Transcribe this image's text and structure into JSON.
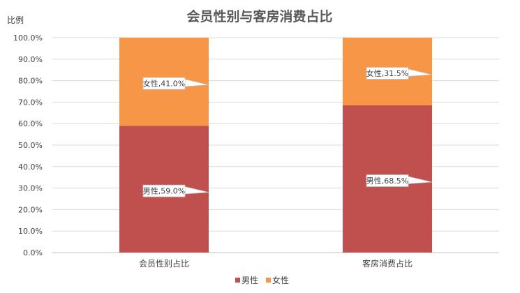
{
  "chart_data": {
    "type": "bar",
    "stacked": true,
    "title": "会员性别与客房消费占比",
    "ylabel": "比例",
    "xlabel": "",
    "categories": [
      "会员性别占比",
      "客房消费占比"
    ],
    "series": [
      {
        "name": "男性",
        "values": [
          59.0,
          68.5
        ],
        "color": "#C0504D",
        "data_labels": [
          "男性,59.0%",
          "男性,68.5%"
        ]
      },
      {
        "name": "女性",
        "values": [
          41.0,
          31.5
        ],
        "color": "#F79646",
        "data_labels": [
          "女性,41.0%",
          "女性,31.5%"
        ]
      }
    ],
    "ylim": [
      0,
      100
    ],
    "yticks": [
      "0.0%",
      "10.0%",
      "20.0%",
      "30.0%",
      "40.0%",
      "50.0%",
      "60.0%",
      "70.0%",
      "80.0%",
      "90.0%",
      "100.0%"
    ],
    "grid": true,
    "legend": "bottom"
  }
}
